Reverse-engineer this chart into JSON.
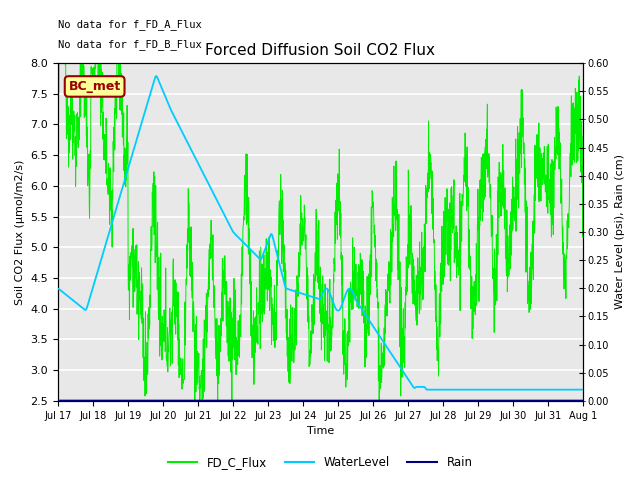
{
  "title": "Forced Diffusion Soil CO2 Flux",
  "xlabel": "Time",
  "ylabel_left": "Soil CO2 Flux (μmol/m2/s)",
  "ylabel_right": "Water Level (psi), Rain (cm)",
  "ylim_left": [
    2.5,
    8.0
  ],
  "ylim_right": [
    0.0,
    0.6
  ],
  "background_color": "#ffffff",
  "plot_bg_color": "#e8e8e8",
  "annotations": [
    "No data for f_FD_A_Flux",
    "No data for f_FD_B_Flux"
  ],
  "bc_met_label": "BC_met",
  "bc_met_color": "#990000",
  "bc_met_bg": "#ffff99",
  "legend_labels": [
    "FD_C_Flux",
    "WaterLevel",
    "Rain"
  ],
  "fd_color": "#00ee00",
  "water_color": "#00ccff",
  "rain_color": "#000080",
  "x_tick_labels": [
    "Jul 17",
    "Jul 18",
    "Jul 19",
    "Jul 20",
    "Jul 21",
    "Jul 22",
    "Jul 23",
    "Jul 24",
    "Jul 25",
    "Jul 26",
    "Jul 27",
    "Jul 28",
    "Jul 29",
    "Jul 30",
    "Jul 31",
    "Aug 1"
  ],
  "right_yticks": [
    0.0,
    0.05,
    0.1,
    0.15,
    0.2,
    0.25,
    0.3,
    0.35,
    0.4,
    0.45,
    0.5,
    0.55,
    0.6
  ],
  "right_ytick_labels": [
    "0.00",
    "0.05",
    "0.10",
    "0.15",
    "0.20",
    "0.25",
    "0.30",
    "0.35",
    "0.40",
    "0.45",
    "0.50",
    "0.55",
    "0.60"
  ]
}
